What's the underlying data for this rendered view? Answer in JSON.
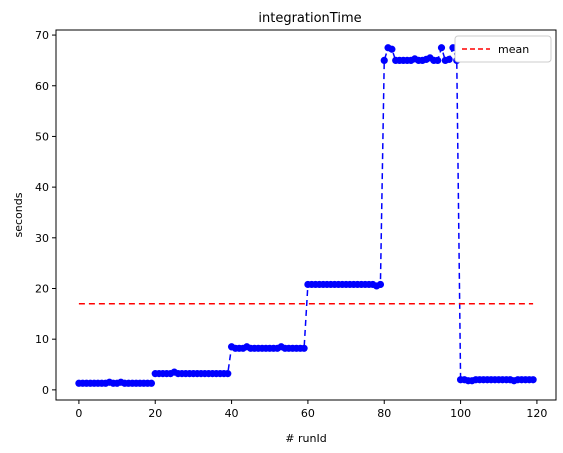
{
  "chart_data": {
    "type": "line",
    "title": "integrationTime",
    "xlabel": "# runId",
    "ylabel": "seconds",
    "xlim": [
      -6,
      125
    ],
    "ylim": [
      -2,
      71
    ],
    "xticks": [
      0,
      20,
      40,
      60,
      80,
      100,
      120
    ],
    "yticks": [
      0,
      10,
      20,
      30,
      40,
      50,
      60,
      70
    ],
    "grid": false,
    "legend": {
      "placement": "top-right",
      "entries": [
        "mean"
      ]
    },
    "series": [
      {
        "color": "#0000ff",
        "style": "dashed-with-markers",
        "x": [
          0,
          1,
          2,
          3,
          4,
          5,
          6,
          7,
          8,
          9,
          10,
          11,
          12,
          13,
          14,
          15,
          16,
          17,
          18,
          19,
          20,
          21,
          22,
          23,
          24,
          25,
          26,
          27,
          28,
          29,
          30,
          31,
          32,
          33,
          34,
          35,
          36,
          37,
          38,
          39,
          40,
          41,
          42,
          43,
          44,
          45,
          46,
          47,
          48,
          49,
          50,
          51,
          52,
          53,
          54,
          55,
          56,
          57,
          58,
          59,
          60,
          61,
          62,
          63,
          64,
          65,
          66,
          67,
          68,
          69,
          70,
          71,
          72,
          73,
          74,
          75,
          76,
          77,
          78,
          79,
          80,
          81,
          82,
          83,
          84,
          85,
          86,
          87,
          88,
          89,
          90,
          91,
          92,
          93,
          94,
          95,
          96,
          97,
          98,
          99,
          100,
          101,
          102,
          103,
          104,
          105,
          106,
          107,
          108,
          109,
          110,
          111,
          112,
          113,
          114,
          115,
          116,
          117,
          118,
          119
        ],
        "values": [
          1.3,
          1.3,
          1.3,
          1.3,
          1.3,
          1.3,
          1.3,
          1.3,
          1.5,
          1.3,
          1.3,
          1.5,
          1.3,
          1.3,
          1.3,
          1.3,
          1.3,
          1.3,
          1.3,
          1.3,
          3.2,
          3.2,
          3.2,
          3.2,
          3.2,
          3.5,
          3.2,
          3.2,
          3.2,
          3.2,
          3.2,
          3.2,
          3.2,
          3.2,
          3.2,
          3.2,
          3.2,
          3.2,
          3.2,
          3.2,
          8.5,
          8.2,
          8.2,
          8.2,
          8.5,
          8.2,
          8.2,
          8.2,
          8.2,
          8.2,
          8.2,
          8.2,
          8.2,
          8.5,
          8.2,
          8.2,
          8.2,
          8.2,
          8.2,
          8.2,
          20.8,
          20.8,
          20.8,
          20.8,
          20.8,
          20.8,
          20.8,
          20.8,
          20.8,
          20.8,
          20.8,
          20.8,
          20.8,
          20.8,
          20.8,
          20.8,
          20.8,
          20.8,
          20.5,
          20.8,
          65.0,
          67.5,
          67.2,
          65.0,
          65.0,
          65.0,
          65.0,
          65.0,
          65.3,
          65.0,
          65.0,
          65.2,
          65.5,
          65.0,
          65.0,
          67.5,
          65.0,
          65.2,
          67.5,
          65.0,
          2.0,
          2.0,
          1.8,
          1.8,
          2.0,
          2.0,
          2.0,
          2.0,
          2.0,
          2.0,
          2.0,
          2.0,
          2.0,
          2.0,
          1.8,
          2.0,
          2.0,
          2.0,
          2.0,
          2.0
        ]
      },
      {
        "name": "mean",
        "color": "#ff0000",
        "style": "dashed",
        "x": [
          0,
          119
        ],
        "values": [
          17,
          17
        ]
      }
    ]
  }
}
